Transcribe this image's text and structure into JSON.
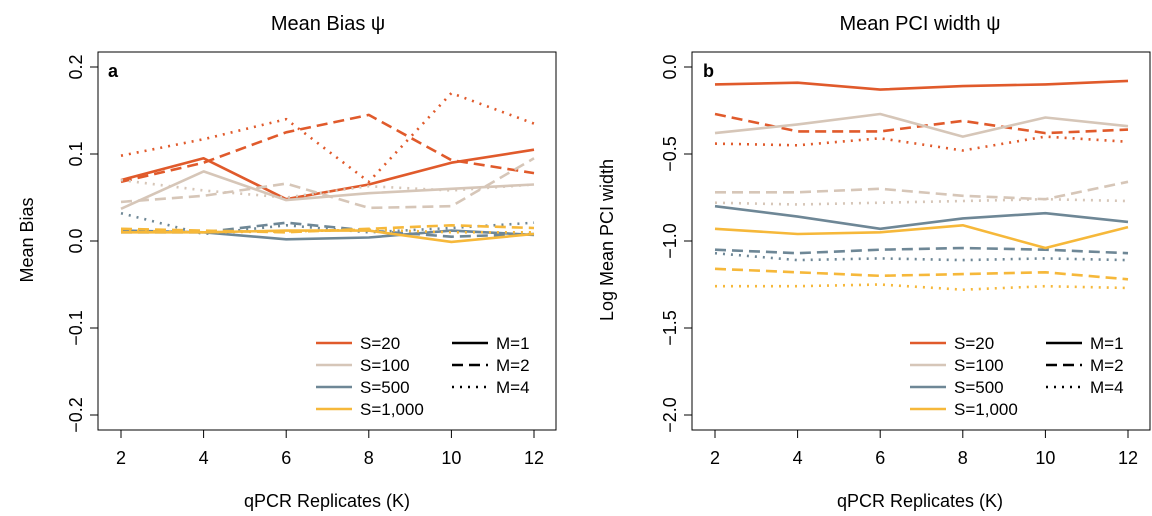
{
  "colors": {
    "S=20": "#E05A2B",
    "S=100": "#D6C6B8",
    "S=500": "#6E8796",
    "S=1,000": "#F6B83A",
    "axis": "#000000"
  },
  "legend": {
    "s_entries": [
      "S=20",
      "S=100",
      "S=500",
      "S=1,000"
    ],
    "m_entries": [
      {
        "label": "M=1",
        "dash": "solid"
      },
      {
        "label": "M=2",
        "dash": "dashed"
      },
      {
        "label": "M=4",
        "dash": "dotted"
      }
    ],
    "placement": "bottom-right"
  },
  "chart_data": [
    {
      "type": "line",
      "panel_label": "a",
      "title": "Mean Bias ψ",
      "xlabel": "qPCR Replicates (K)",
      "ylabel": "Mean Bias",
      "x": [
        2,
        4,
        6,
        8,
        10,
        12
      ],
      "x_ticks": [
        "2",
        "4",
        "6",
        "8",
        "10",
        "12"
      ],
      "y_ticks": [
        "−0.2",
        "−0.1",
        "0.0",
        "0.1",
        "0.2"
      ],
      "y_tick_values": [
        -0.2,
        -0.1,
        0.0,
        0.1,
        0.2
      ],
      "xlim": [
        2,
        12
      ],
      "ylim": [
        -0.2,
        0.2
      ],
      "grid": false,
      "series": [
        {
          "name": "S=20, M=1",
          "s": "S=20",
          "m": "M=1",
          "values": [
            0.07,
            0.095,
            0.048,
            0.065,
            0.09,
            0.105
          ]
        },
        {
          "name": "S=20, M=2",
          "s": "S=20",
          "m": "M=2",
          "values": [
            0.068,
            0.09,
            0.125,
            0.145,
            0.093,
            0.078
          ]
        },
        {
          "name": "S=20, M=4",
          "s": "S=20",
          "m": "M=4",
          "values": [
            0.098,
            0.117,
            0.14,
            0.068,
            0.17,
            0.135
          ]
        },
        {
          "name": "S=100, M=1",
          "s": "S=100",
          "m": "M=1",
          "values": [
            0.037,
            0.08,
            0.047,
            0.055,
            0.06,
            0.065
          ]
        },
        {
          "name": "S=100, M=2",
          "s": "S=100",
          "m": "M=2",
          "values": [
            0.045,
            0.052,
            0.066,
            0.038,
            0.04,
            0.095
          ]
        },
        {
          "name": "S=100, M=4",
          "s": "S=100",
          "m": "M=4",
          "values": [
            0.07,
            0.058,
            0.05,
            0.063,
            0.058,
            0.065
          ]
        },
        {
          "name": "S=500, M=1",
          "s": "S=500",
          "m": "M=1",
          "values": [
            0.012,
            0.01,
            0.002,
            0.004,
            0.012,
            0.007
          ]
        },
        {
          "name": "S=500, M=2",
          "s": "S=500",
          "m": "M=2",
          "values": [
            0.01,
            0.01,
            0.021,
            0.012,
            0.005,
            0.008
          ]
        },
        {
          "name": "S=500, M=4",
          "s": "S=500",
          "m": "M=4",
          "values": [
            0.032,
            0.008,
            0.018,
            0.01,
            0.015,
            0.021
          ]
        },
        {
          "name": "S=1,000, M=1",
          "s": "S=1,000",
          "m": "M=1",
          "values": [
            0.01,
            0.01,
            0.012,
            0.012,
            -0.001,
            0.008
          ]
        },
        {
          "name": "S=1,000, M=2",
          "s": "S=1,000",
          "m": "M=2",
          "values": [
            0.014,
            0.012,
            0.01,
            0.014,
            0.018,
            0.015
          ]
        },
        {
          "name": "S=1,000, M=4",
          "s": "S=1,000",
          "m": "M=4",
          "values": [
            0.012,
            0.01,
            0.011,
            0.013,
            0.01,
            0.01
          ]
        }
      ]
    },
    {
      "type": "line",
      "panel_label": "b",
      "title": "Mean PCI width ψ",
      "xlabel": "qPCR Replicates (K)",
      "ylabel": "Log Mean PCI width",
      "x": [
        2,
        4,
        6,
        8,
        10,
        12
      ],
      "x_ticks": [
        "2",
        "4",
        "6",
        "8",
        "10",
        "12"
      ],
      "y_ticks": [
        "−2.0",
        "−1.5",
        "−1.0",
        "−0.5",
        "0.0"
      ],
      "y_tick_values": [
        -2.0,
        -1.5,
        -1.0,
        -0.5,
        0.0
      ],
      "xlim": [
        2,
        12
      ],
      "ylim": [
        -2.0,
        0.0
      ],
      "grid": false,
      "series": [
        {
          "name": "S=20, M=1",
          "s": "S=20",
          "m": "M=1",
          "values": [
            -0.1,
            -0.09,
            -0.13,
            -0.11,
            -0.1,
            -0.08
          ]
        },
        {
          "name": "S=20, M=2",
          "s": "S=20",
          "m": "M=2",
          "values": [
            -0.27,
            -0.37,
            -0.37,
            -0.31,
            -0.38,
            -0.36
          ]
        },
        {
          "name": "S=20, M=4",
          "s": "S=20",
          "m": "M=4",
          "values": [
            -0.44,
            -0.45,
            -0.41,
            -0.48,
            -0.4,
            -0.43
          ]
        },
        {
          "name": "S=100, M=1",
          "s": "S=100",
          "m": "M=1",
          "values": [
            -0.38,
            -0.33,
            -0.27,
            -0.4,
            -0.29,
            -0.34
          ]
        },
        {
          "name": "S=100, M=2",
          "s": "S=100",
          "m": "M=2",
          "values": [
            -0.72,
            -0.72,
            -0.7,
            -0.74,
            -0.76,
            -0.66
          ]
        },
        {
          "name": "S=100, M=4",
          "s": "S=100",
          "m": "M=4",
          "values": [
            -0.78,
            -0.79,
            -0.78,
            -0.77,
            -0.76,
            -0.77
          ]
        },
        {
          "name": "S=500, M=1",
          "s": "S=500",
          "m": "M=1",
          "values": [
            -0.8,
            -0.86,
            -0.93,
            -0.87,
            -0.84,
            -0.89
          ]
        },
        {
          "name": "S=500, M=2",
          "s": "S=500",
          "m": "M=2",
          "values": [
            -1.05,
            -1.07,
            -1.05,
            -1.04,
            -1.05,
            -1.07
          ]
        },
        {
          "name": "S=500, M=4",
          "s": "S=500",
          "m": "M=4",
          "values": [
            -1.07,
            -1.11,
            -1.1,
            -1.11,
            -1.1,
            -1.11
          ]
        },
        {
          "name": "S=1,000, M=1",
          "s": "S=1,000",
          "m": "M=1",
          "values": [
            -0.93,
            -0.96,
            -0.95,
            -0.91,
            -1.04,
            -0.92
          ]
        },
        {
          "name": "S=1,000, M=2",
          "s": "S=1,000",
          "m": "M=2",
          "values": [
            -1.16,
            -1.18,
            -1.2,
            -1.19,
            -1.18,
            -1.22
          ]
        },
        {
          "name": "S=1,000, M=4",
          "s": "S=1,000",
          "m": "M=4",
          "values": [
            -1.26,
            -1.26,
            -1.25,
            -1.28,
            -1.26,
            -1.27
          ]
        }
      ]
    }
  ]
}
